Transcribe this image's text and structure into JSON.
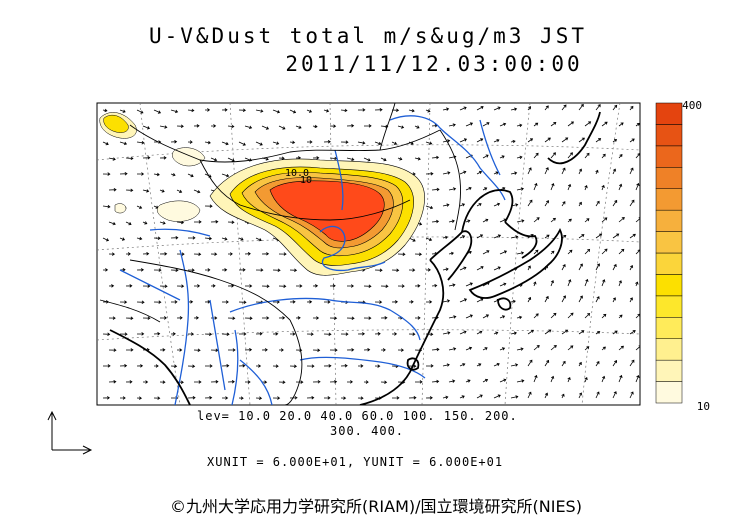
{
  "title": {
    "line1": "U-V&Dust total m/s&ug/m3 JST",
    "line2": "2011/11/12.03:00:00"
  },
  "colorbar": {
    "max_label": "400",
    "min_label": "10",
    "colors": [
      "#fffadf",
      "#fff5b8",
      "#fff08f",
      "#ffeb5a",
      "#fde72b",
      "#fce000",
      "#fbd53a",
      "#f9c442",
      "#f6b03d",
      "#f39a32",
      "#ef8127",
      "#eb671c",
      "#e75314",
      "#e4440f"
    ]
  },
  "levels": {
    "line1": "lev= 10.0 20.0 40.0 60.0 100. 150. 200.",
    "line2": "300. 400."
  },
  "units_text": "XUNIT = 6.000E+01, YUNIT = 6.000E+01",
  "contour_labels": [
    "10.0",
    "10"
  ],
  "credit": "©九州大学応用力学研究所(RIAM)/国立環境研究所(NIES)",
  "colors": {
    "coast": "#000000",
    "rivers": "#1f5fd6",
    "dust_high": "#ff4a1a"
  }
}
